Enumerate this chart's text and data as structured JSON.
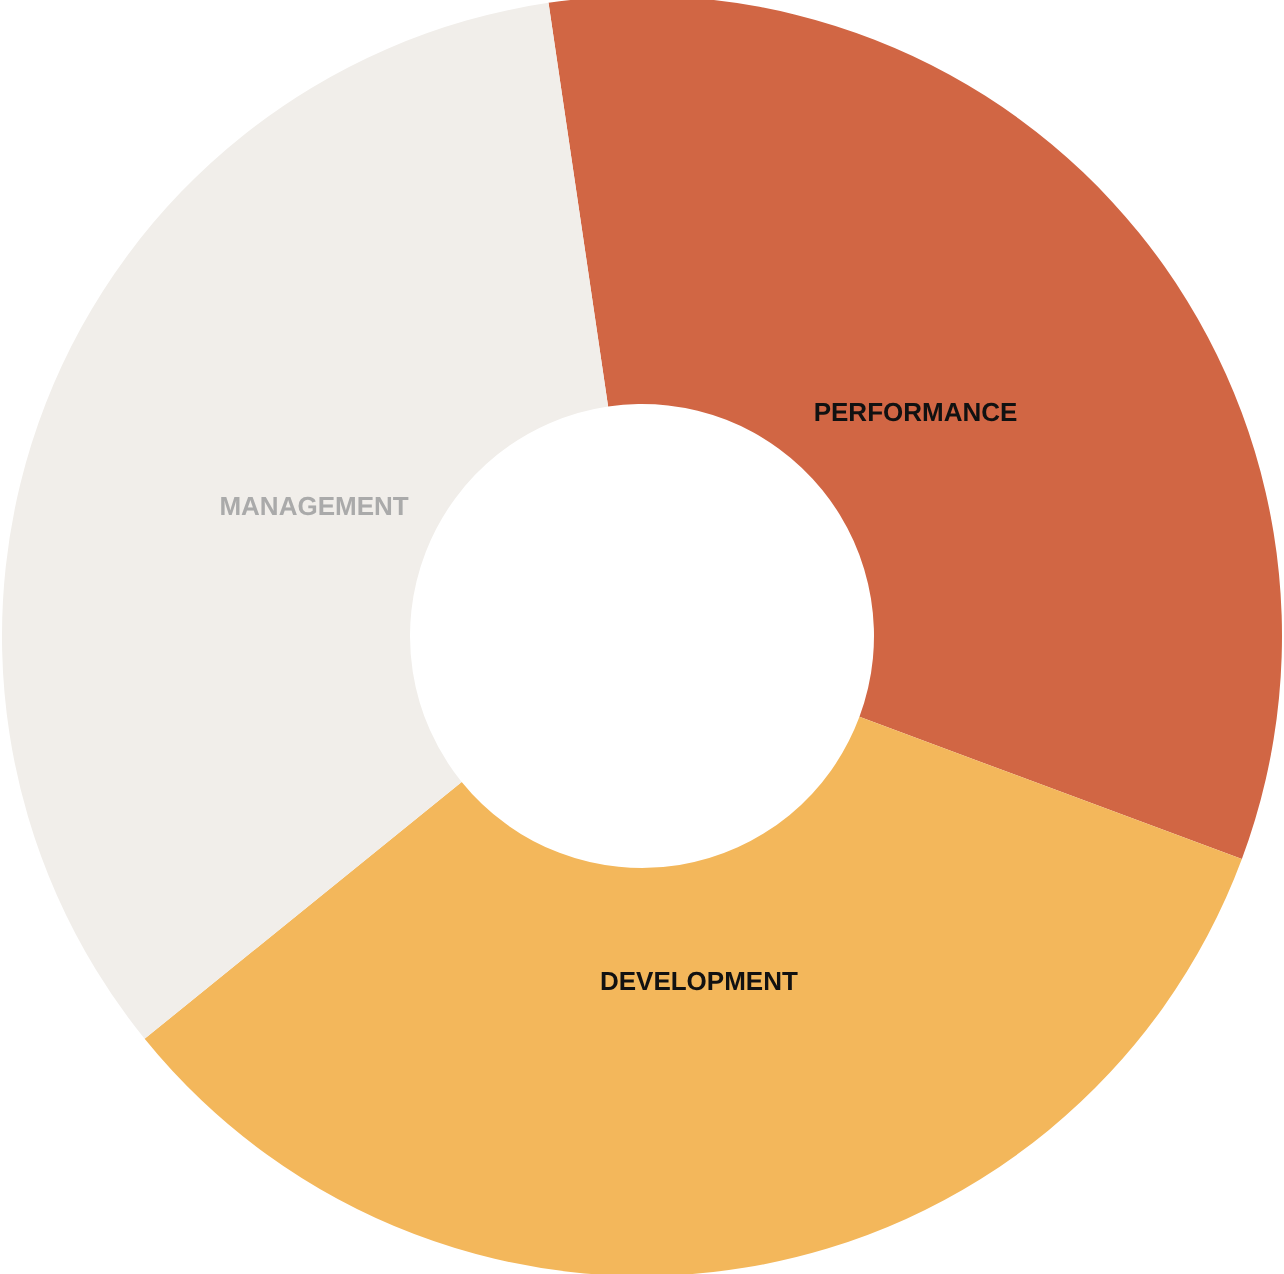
{
  "chart_data": {
    "type": "donut",
    "categories": [
      "PERFORMANCE",
      "DEVELOPMENT",
      "MANAGEMENT"
    ],
    "values": [
      33,
      33.5,
      33.5
    ],
    "colors": [
      "#d16644",
      "#f3b75b",
      "#f1eeea"
    ]
  }
}
